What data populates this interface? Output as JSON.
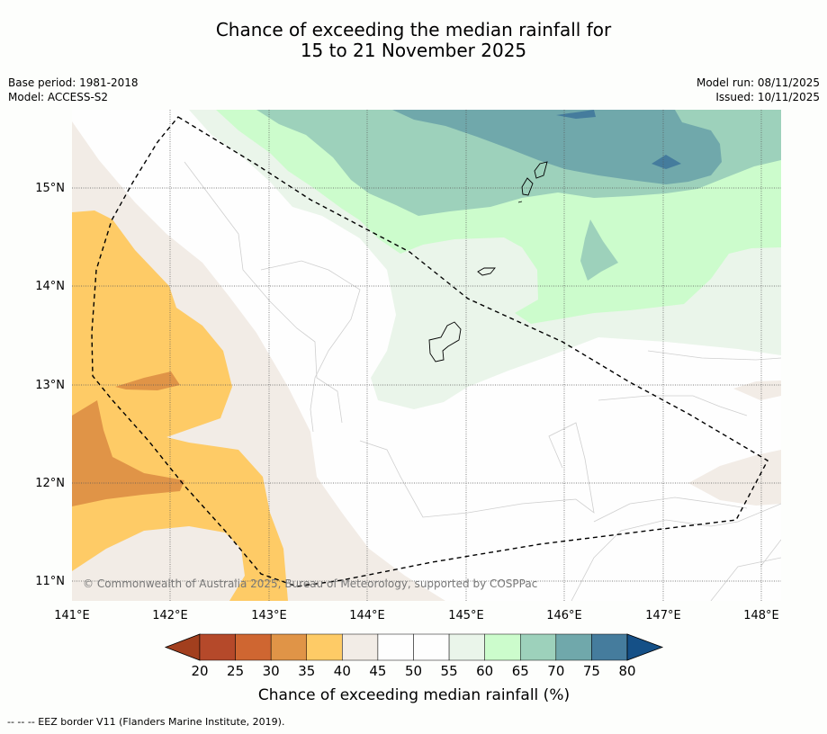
{
  "title": {
    "line1": "Chance of exceeding the median rainfall for",
    "line2": "15 to 21 November 2025"
  },
  "meta": {
    "base_period": "Base period: 1981-2018",
    "model": "Model: ACCESS-S2",
    "model_run": "Model run: 08/11/2025",
    "issued": "Issued: 10/11/2025"
  },
  "map": {
    "lon_ticks": [
      "141°E",
      "142°E",
      "143°E",
      "144°E",
      "145°E",
      "146°E",
      "147°E",
      "148°E"
    ],
    "lat_ticks": [
      "15°N",
      "14°N",
      "13°N",
      "12°N",
      "11°N"
    ],
    "copyright": "© Commonwealth of Australia 2025, Bureau of Meteorology, supported by COSPPac"
  },
  "colorbar": {
    "ticks": [
      "20",
      "25",
      "30",
      "35",
      "40",
      "45",
      "50",
      "55",
      "60",
      "65",
      "70",
      "75",
      "80"
    ],
    "colors": [
      "#a23f1e",
      "#b5492a",
      "#cf6631",
      "#e09447",
      "#fecb66",
      "#f2ece6",
      "#fefefe",
      "#fefefe",
      "#eaf5ea",
      "#ccfccc",
      "#9dd1bb",
      "#70a8ab",
      "#457c9d",
      "#155087"
    ],
    "label": "Chance of exceeding median rainfall (%)"
  },
  "footnote": "--  --  -- EEZ border V11 (Flanders Marine Institute, 2019)."
}
